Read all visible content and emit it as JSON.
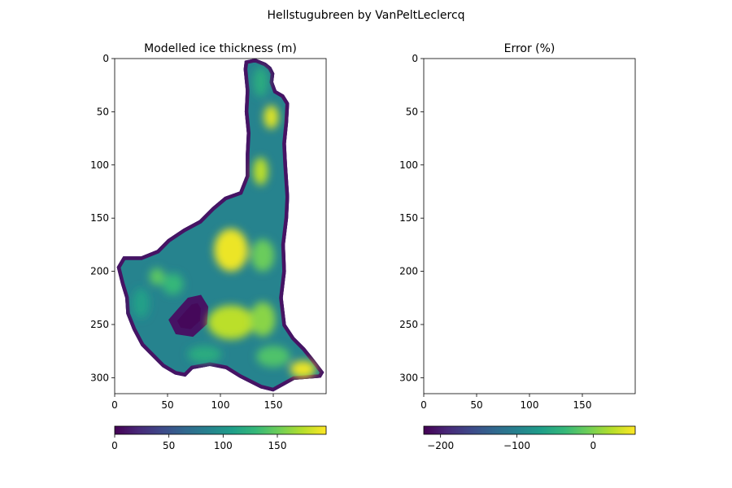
{
  "chart_data": {
    "type": "heatmap",
    "title": "Hellstugubreen by VanPeltLeclercq",
    "panels": [
      {
        "title": "Modelled ice thickness (m)",
        "colormap": "viridis",
        "xlim": [
          0,
          200
        ],
        "ylim": [
          315,
          0
        ],
        "x_ticks": [
          "0",
          "50",
          "100",
          "150"
        ],
        "y_ticks": [
          "0",
          "50",
          "100",
          "150",
          "200",
          "250",
          "300"
        ],
        "colorbar": {
          "range": [
            0,
            195
          ],
          "ticks": [
            "0",
            "50",
            "100",
            "150"
          ]
        },
        "outline_data": [
          [
            123,
            2
          ],
          [
            133,
            0
          ],
          [
            143,
            4
          ],
          [
            148,
            8
          ],
          [
            151,
            14
          ],
          [
            150,
            22
          ],
          [
            153,
            30
          ],
          [
            160,
            34
          ],
          [
            165,
            42
          ],
          [
            164,
            60
          ],
          [
            162,
            80
          ],
          [
            163,
            100
          ],
          [
            165,
            130
          ],
          [
            164,
            150
          ],
          [
            161,
            175
          ],
          [
            162,
            200
          ],
          [
            159,
            225
          ],
          [
            162,
            250
          ],
          [
            170,
            262
          ],
          [
            180,
            272
          ],
          [
            188,
            282
          ],
          [
            198,
            295
          ],
          [
            195,
            300
          ],
          [
            170,
            302
          ],
          [
            150,
            313
          ],
          [
            138,
            310
          ],
          [
            118,
            300
          ],
          [
            105,
            292
          ],
          [
            90,
            289
          ],
          [
            74,
            292
          ],
          [
            67,
            299
          ],
          [
            57,
            297
          ],
          [
            45,
            290
          ],
          [
            35,
            280
          ],
          [
            25,
            270
          ],
          [
            17,
            255
          ],
          [
            11,
            240
          ],
          [
            10,
            225
          ],
          [
            6,
            212
          ],
          [
            2,
            196
          ],
          [
            8,
            186
          ],
          [
            25,
            186
          ],
          [
            40,
            180
          ],
          [
            50,
            170
          ],
          [
            65,
            160
          ],
          [
            80,
            152
          ],
          [
            92,
            140
          ],
          [
            104,
            130
          ],
          [
            118,
            125
          ],
          [
            124,
            110
          ],
          [
            124,
            90
          ],
          [
            125,
            70
          ],
          [
            123,
            50
          ],
          [
            124,
            30
          ],
          [
            122,
            10
          ]
        ],
        "hole_data": [
          [
            71,
            228
          ],
          [
            80,
            226
          ],
          [
            85,
            234
          ],
          [
            84,
            248
          ],
          [
            73,
            258
          ],
          [
            60,
            256
          ],
          [
            55,
            246
          ],
          [
            62,
            238
          ]
        ],
        "hotspots_data": [
          {
            "x": 148,
            "y": 55,
            "rx": 7,
            "ry": 11,
            "v": 185
          },
          {
            "x": 138,
            "y": 106,
            "rx": 7,
            "ry": 13,
            "v": 175
          },
          {
            "x": 110,
            "y": 180,
            "rx": 16,
            "ry": 20,
            "v": 190
          },
          {
            "x": 140,
            "y": 185,
            "rx": 11,
            "ry": 15,
            "v": 150
          },
          {
            "x": 110,
            "y": 248,
            "rx": 22,
            "ry": 16,
            "v": 175
          },
          {
            "x": 140,
            "y": 245,
            "rx": 12,
            "ry": 16,
            "v": 160
          },
          {
            "x": 55,
            "y": 212,
            "rx": 10,
            "ry": 10,
            "v": 130
          },
          {
            "x": 40,
            "y": 205,
            "rx": 7,
            "ry": 8,
            "v": 145
          },
          {
            "x": 178,
            "y": 292,
            "rx": 12,
            "ry": 8,
            "v": 190
          },
          {
            "x": 150,
            "y": 280,
            "rx": 16,
            "ry": 10,
            "v": 140
          },
          {
            "x": 85,
            "y": 278,
            "rx": 16,
            "ry": 8,
            "v": 120
          },
          {
            "x": 138,
            "y": 22,
            "rx": 7,
            "ry": 14,
            "v": 120
          },
          {
            "x": 25,
            "y": 230,
            "rx": 8,
            "ry": 14,
            "v": 110
          }
        ]
      },
      {
        "title": "Error (%)",
        "colormap": "viridis",
        "xlim": [
          0,
          200
        ],
        "ylim": [
          315,
          0
        ],
        "x_ticks": [
          "0",
          "50",
          "100",
          "150"
        ],
        "y_ticks": [
          "0",
          "50",
          "100",
          "150",
          "200",
          "250",
          "300"
        ],
        "colorbar": {
          "range": [
            -222,
            55
          ],
          "ticks": [
            "−200",
            "−100",
            "0"
          ]
        }
      }
    ]
  }
}
